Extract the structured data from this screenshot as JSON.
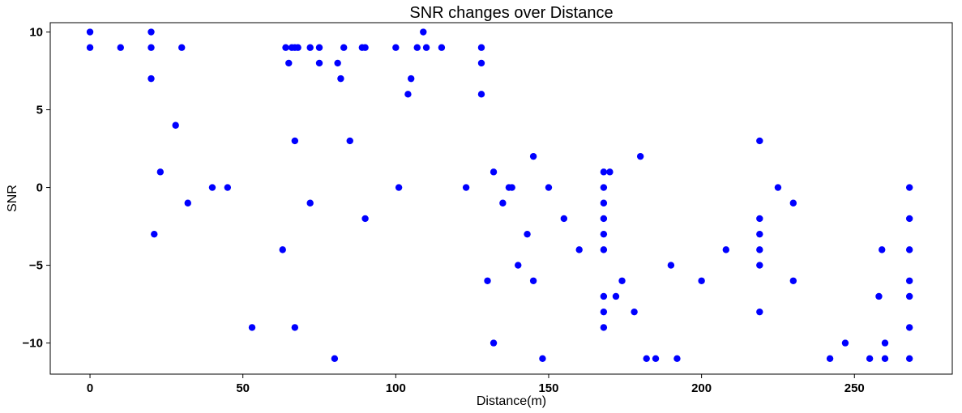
{
  "chart_data": {
    "type": "scatter",
    "title": "SNR changes over Distance",
    "xlabel": "Distance(m)",
    "ylabel": "SNR",
    "xlim": [
      -13,
      282
    ],
    "ylim": [
      -12,
      10.6
    ],
    "x_ticks": [
      0,
      50,
      100,
      150,
      200,
      250
    ],
    "y_ticks": [
      -10,
      -5,
      0,
      5,
      10
    ],
    "x_tick_labels": [
      "0",
      "50",
      "100",
      "150",
      "200",
      "250"
    ],
    "y_tick_labels": [
      "−10",
      "−5",
      "0",
      "5",
      "10"
    ],
    "grid": false,
    "marker_color": "#0000ff",
    "points": [
      [
        0,
        10
      ],
      [
        0,
        9
      ],
      [
        10,
        9
      ],
      [
        20,
        10
      ],
      [
        20,
        9
      ],
      [
        20,
        7
      ],
      [
        21,
        -3
      ],
      [
        23,
        1
      ],
      [
        28,
        4
      ],
      [
        30,
        9
      ],
      [
        32,
        -1
      ],
      [
        40,
        0
      ],
      [
        45,
        0
      ],
      [
        53,
        -9
      ],
      [
        63,
        -4
      ],
      [
        64,
        9
      ],
      [
        65,
        8
      ],
      [
        66,
        9
      ],
      [
        67,
        9
      ],
      [
        67,
        3
      ],
      [
        67,
        -9
      ],
      [
        68,
        9
      ],
      [
        72,
        9
      ],
      [
        72,
        -1
      ],
      [
        75,
        9
      ],
      [
        75,
        8
      ],
      [
        80,
        -11
      ],
      [
        81,
        8
      ],
      [
        82,
        7
      ],
      [
        83,
        9
      ],
      [
        85,
        3
      ],
      [
        89,
        9
      ],
      [
        90,
        9
      ],
      [
        90,
        -2
      ],
      [
        100,
        9
      ],
      [
        101,
        0
      ],
      [
        104,
        6
      ],
      [
        105,
        7
      ],
      [
        107,
        9
      ],
      [
        109,
        10
      ],
      [
        110,
        9
      ],
      [
        115,
        9
      ],
      [
        123,
        0
      ],
      [
        128,
        9
      ],
      [
        128,
        8
      ],
      [
        128,
        6
      ],
      [
        130,
        -6
      ],
      [
        132,
        1
      ],
      [
        132,
        -10
      ],
      [
        135,
        -1
      ],
      [
        137,
        0
      ],
      [
        138,
        0
      ],
      [
        140,
        -5
      ],
      [
        143,
        -3
      ],
      [
        145,
        2
      ],
      [
        145,
        -6
      ],
      [
        148,
        -11
      ],
      [
        150,
        0
      ],
      [
        155,
        -2
      ],
      [
        160,
        -4
      ],
      [
        168,
        1
      ],
      [
        168,
        0
      ],
      [
        168,
        -1
      ],
      [
        168,
        -2
      ],
      [
        168,
        -3
      ],
      [
        168,
        -4
      ],
      [
        168,
        -7
      ],
      [
        168,
        -8
      ],
      [
        168,
        -9
      ],
      [
        170,
        1
      ],
      [
        172,
        -7
      ],
      [
        174,
        -6
      ],
      [
        178,
        -8
      ],
      [
        180,
        2
      ],
      [
        182,
        -11
      ],
      [
        185,
        -11
      ],
      [
        190,
        -5
      ],
      [
        192,
        -11
      ],
      [
        200,
        -6
      ],
      [
        208,
        -4
      ],
      [
        219,
        3
      ],
      [
        219,
        -2
      ],
      [
        219,
        -3
      ],
      [
        219,
        -4
      ],
      [
        219,
        -5
      ],
      [
        219,
        -8
      ],
      [
        225,
        0
      ],
      [
        230,
        -1
      ],
      [
        230,
        -6
      ],
      [
        242,
        -11
      ],
      [
        247,
        -10
      ],
      [
        255,
        -11
      ],
      [
        258,
        -7
      ],
      [
        259,
        -4
      ],
      [
        260,
        -10
      ],
      [
        260,
        -11
      ],
      [
        268,
        0
      ],
      [
        268,
        -2
      ],
      [
        268,
        -4
      ],
      [
        268,
        -6
      ],
      [
        268,
        -7
      ],
      [
        268,
        -9
      ],
      [
        268,
        -11
      ]
    ]
  }
}
